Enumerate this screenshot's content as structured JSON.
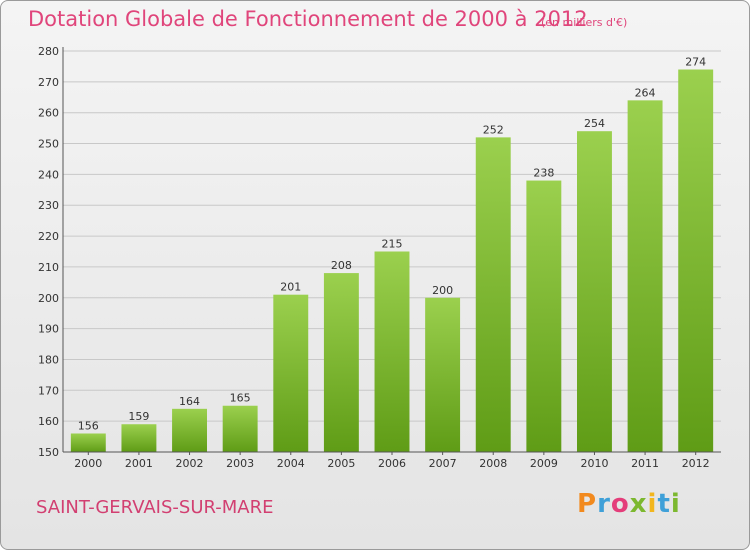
{
  "header": {
    "title": "Dotation Globale de Fonctionnement de 2000 à 2012",
    "unit": "(en milliers d'€)"
  },
  "footer": {
    "commune": "SAINT-GERVAIS-SUR-MARE",
    "logo_letters": [
      "P",
      "r",
      "o",
      "x",
      "i",
      "t",
      "i"
    ],
    "logo_colors": [
      "#f28a1e",
      "#3fa0d8",
      "#e43d7a",
      "#7cb82f",
      "#f2b61e",
      "#3fa0d8",
      "#7cb82f"
    ]
  },
  "colors": {
    "bar_top": "#9bd04e",
    "bar_bottom": "#5f9c16",
    "grid": "#c8c8c8",
    "title": "#e0457b"
  },
  "chart_data": {
    "type": "bar",
    "title": "Dotation Globale de Fonctionnement de 2000 à 2012",
    "categories": [
      "2000",
      "2001",
      "2002",
      "2003",
      "2004",
      "2005",
      "2006",
      "2007",
      "2008",
      "2009",
      "2010",
      "2011",
      "2012"
    ],
    "values": [
      156,
      159,
      164,
      165,
      201,
      208,
      215,
      200,
      252,
      238,
      254,
      264,
      274
    ],
    "ylim": [
      150,
      280
    ],
    "yticks": [
      150,
      160,
      170,
      180,
      190,
      200,
      210,
      220,
      230,
      240,
      250,
      260,
      270,
      280
    ],
    "xlabel": "",
    "ylabel": "",
    "grid": true
  }
}
